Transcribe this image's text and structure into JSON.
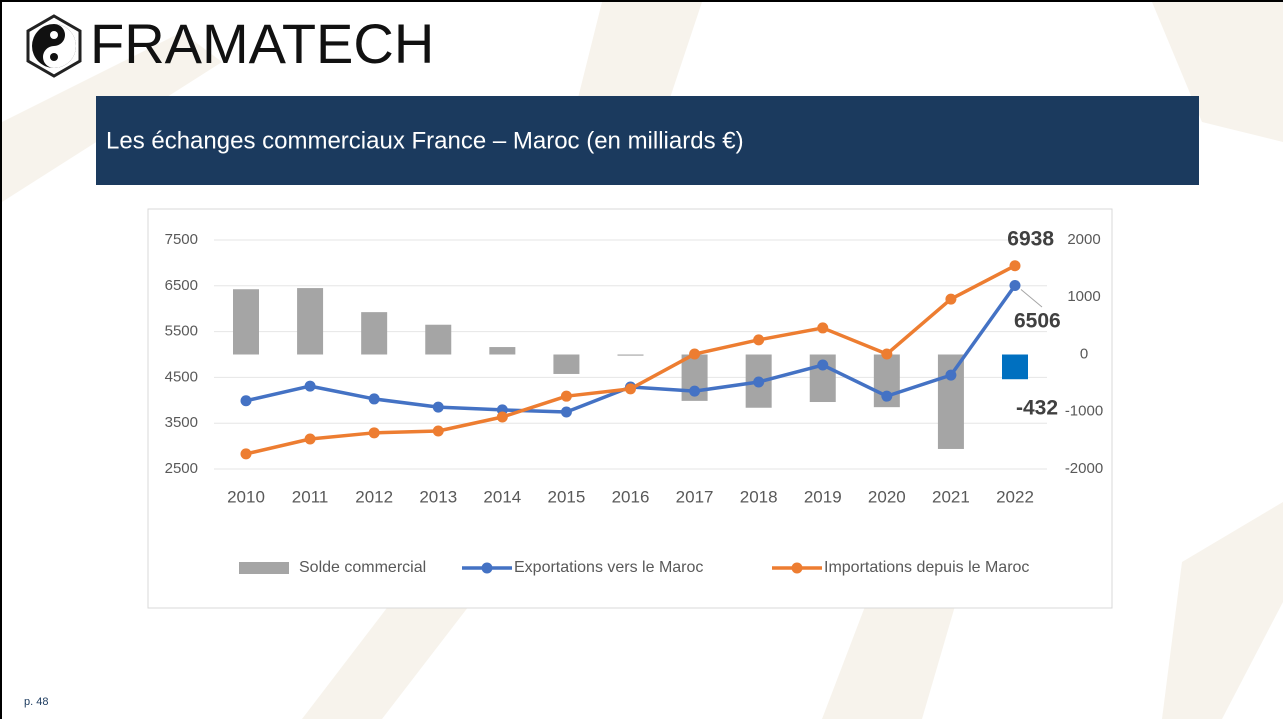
{
  "logo": "FRAMATECH",
  "banner": {
    "title": "Les échanges commerciaux France – Maroc (en milliards €)"
  },
  "page_number": "p. 48",
  "chart_data": {
    "type": "combo",
    "categories": [
      "2010",
      "2011",
      "2012",
      "2013",
      "2014",
      "2015",
      "2016",
      "2017",
      "2018",
      "2019",
      "2020",
      "2021",
      "2022"
    ],
    "series": [
      {
        "name": "Solde commercial",
        "type": "bar",
        "axis": "y2",
        "color": "#a5a5a5",
        "colors": [
          "#a5a5a5",
          "#a5a5a5",
          "#a5a5a5",
          "#a5a5a5",
          "#a5a5a5",
          "#a5a5a5",
          "#a5a5a5",
          "#a5a5a5",
          "#a5a5a5",
          "#a5a5a5",
          "#a5a5a5",
          "#a5a5a5",
          "#0070c0"
        ],
        "values": [
          1140,
          1160,
          740,
          520,
          130,
          -340,
          -20,
          -810,
          -930,
          -830,
          -920,
          -1650,
          -432
        ]
      },
      {
        "name": "Exportations vers le Maroc",
        "type": "line",
        "color": "#4472c4",
        "values": [
          3990,
          4310,
          4030,
          3850,
          3790,
          3745,
          4290,
          4200,
          4400,
          4770,
          4090,
          4550,
          6506
        ]
      },
      {
        "name": "Importations depuis le Maroc",
        "type": "line",
        "color": "#ed7d31",
        "values": [
          2830,
          3155,
          3290,
          3330,
          3635,
          4090,
          4250,
          5010,
          5320,
          5580,
          5010,
          6210,
          6938
        ]
      }
    ],
    "ylim": [
      2500,
      7500
    ],
    "yticks": [
      2500,
      3500,
      4500,
      5500,
      6500,
      7500
    ],
    "y2lim": [
      -2000,
      2000
    ],
    "y2ticks": [
      -2000,
      -1000,
      0,
      1000,
      2000
    ],
    "grid": true,
    "legend": "bottom"
  }
}
